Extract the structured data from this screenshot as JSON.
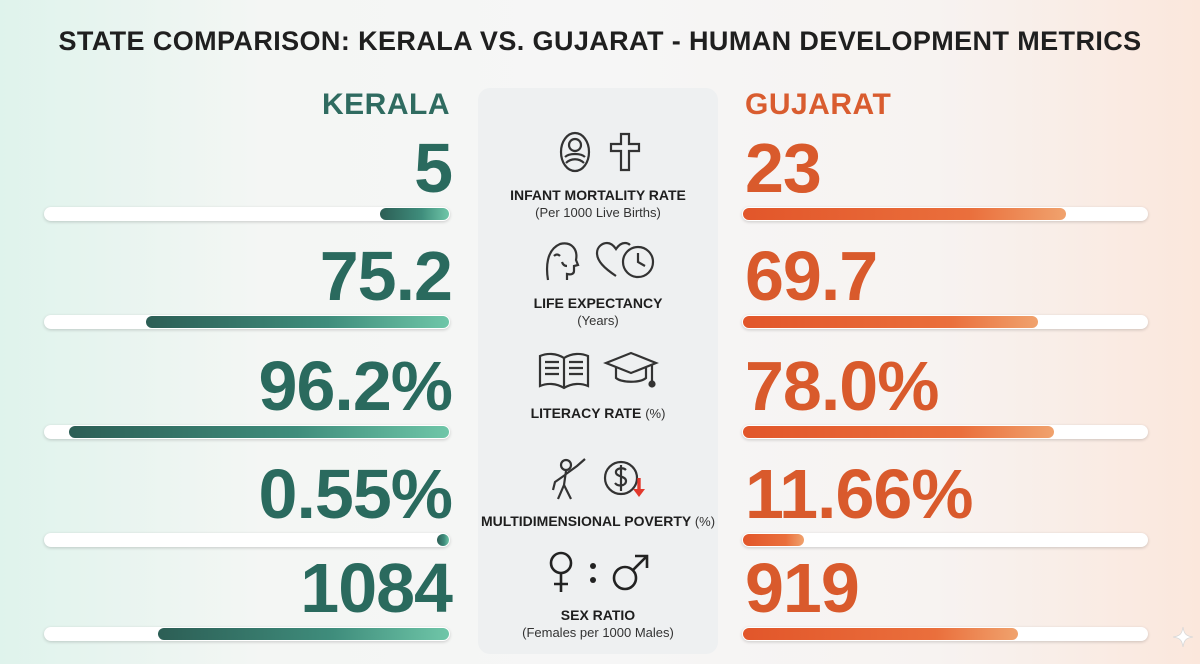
{
  "title": "STATE COMPARISON: KERALA VS. GUJARAT - HUMAN DEVELOPMENT METRICS",
  "colors": {
    "kerala": "#2a6a5e",
    "gujarat": "#d95a2c"
  },
  "chart_data": {
    "type": "bar",
    "title": "STATE COMPARISON: KERALA VS. GUJARAT - HUMAN DEVELOPMENT METRICS",
    "series": [
      {
        "name": "KERALA",
        "values": [
          5,
          75.2,
          96.2,
          0.55,
          1084
        ],
        "labels": [
          "5",
          "75.2",
          "96.2%",
          "0.55%",
          "1084"
        ],
        "fill": [
          0.17,
          0.75,
          0.94,
          0.02,
          0.72
        ]
      },
      {
        "name": "GUJARAT",
        "values": [
          23,
          69.7,
          78.0,
          11.66,
          919
        ],
        "labels": [
          "23",
          "69.7",
          "78.0%",
          "11.66%",
          "919"
        ],
        "fill": [
          0.8,
          0.73,
          0.77,
          0.15,
          0.68
        ]
      }
    ],
    "categories": [
      {
        "label": "INFANT MORTALITY RATE",
        "sub": "(Per 1000 Live Births)",
        "icons": [
          "baby-icon",
          "cross-icon"
        ]
      },
      {
        "label": "LIFE EXPECTANCY",
        "sub": "(Years)",
        "icons": [
          "elderly-person-icon",
          "heart-clock-icon"
        ]
      },
      {
        "label": "LITERACY RATE",
        "sub": "(%)",
        "icons": [
          "book-icon",
          "graduation-cap-icon"
        ]
      },
      {
        "label": "MULTIDIMENSIONAL POVERTY",
        "sub": "(%)",
        "icons": [
          "person-reaching-icon",
          "dollar-down-icon"
        ]
      },
      {
        "label": "SEX RATIO",
        "sub": "(Females per 1000 Males)",
        "icons": [
          "female-icon",
          "male-icon"
        ]
      }
    ]
  }
}
